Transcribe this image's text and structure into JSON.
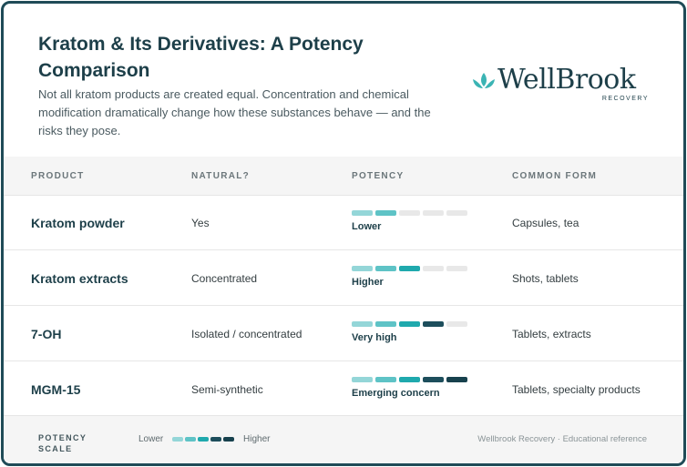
{
  "header": {
    "title": "Kratom & Its Derivatives: A Potency Comparison",
    "subtitle": "Not all kratom products are created equal. Concentration and chemical modification dramatically change how these substances behave — and the risks they pose."
  },
  "logo": {
    "name": "WellBrook",
    "tagline": "RECOVERY",
    "icon": "lotus-icon"
  },
  "table": {
    "columns": [
      "PRODUCT",
      "NATURAL?",
      "POTENCY",
      "COMMON FORM"
    ],
    "rows": [
      {
        "product": "Kratom powder",
        "natural": "Yes",
        "potency_level": 2,
        "potency_label": "Lower",
        "form": "Capsules, tea"
      },
      {
        "product": "Kratom extracts",
        "natural": "Concentrated",
        "potency_level": 3,
        "potency_label": "Higher",
        "form": "Shots, tablets"
      },
      {
        "product": "7-OH",
        "natural": "Isolated / concentrated",
        "potency_level": 4,
        "potency_label": "Very high",
        "form": "Tablets, extracts"
      },
      {
        "product": "MGM-15",
        "natural": "Semi-synthetic",
        "potency_level": 5,
        "potency_label": "Emerging concern",
        "form": "Tablets, specialty products"
      }
    ],
    "potency_max": 5
  },
  "scale": {
    "title": "POTENCY SCALE",
    "lower": "Lower",
    "higher": "Higher"
  },
  "footer": {
    "credit": "Wellbrook Recovery · Educational reference"
  },
  "colors": {
    "border": "#1f4b57",
    "text_dark": "#1d3f49",
    "seg_empty": "#e8e8e8",
    "seg_levels": [
      "#94d6d8",
      "#5ec3c6",
      "#1fa9ad",
      "#1d4e5c",
      "#17414d"
    ]
  }
}
